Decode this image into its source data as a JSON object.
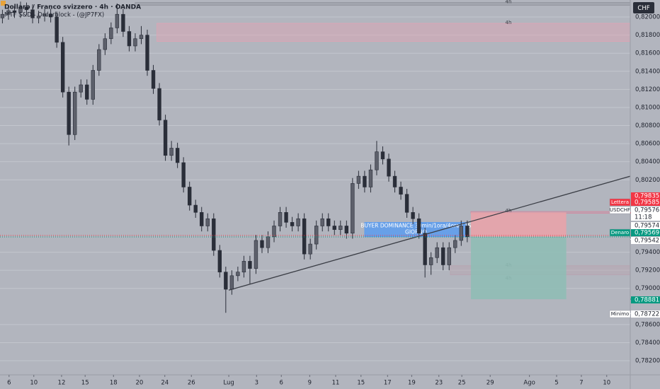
{
  "chart_data": {
    "type": "candlestick",
    "title": "Dollaro / Franco svizzero · 4h · OANDA",
    "subtitle": "MTF S&D - Orderblock - (@JP7FX)",
    "currency": "CHF",
    "color": "#2a2e39",
    "ohlc": [
      [
        0.8199,
        0.8208,
        0.8193,
        0.8203
      ],
      [
        0.8203,
        0.8213,
        0.8197,
        0.8207
      ],
      [
        0.8207,
        0.8212,
        0.8199,
        0.8205
      ],
      [
        0.8205,
        0.8217,
        0.8199,
        0.8211
      ],
      [
        0.8211,
        0.8216,
        0.8202,
        0.8208
      ],
      [
        0.8208,
        0.8214,
        0.8193,
        0.8199
      ],
      [
        0.8199,
        0.8207,
        0.8193,
        0.8201
      ],
      [
        0.8201,
        0.8209,
        0.8195,
        0.8203
      ],
      [
        0.8203,
        0.8209,
        0.8194,
        0.82
      ],
      [
        0.82,
        0.8206,
        0.8166,
        0.8172
      ],
      [
        0.8172,
        0.8178,
        0.8111,
        0.8117
      ],
      [
        0.8117,
        0.8123,
        0.8058,
        0.807
      ],
      [
        0.807,
        0.8123,
        0.8064,
        0.8117
      ],
      [
        0.8117,
        0.8131,
        0.8111,
        0.8125
      ],
      [
        0.8125,
        0.8131,
        0.8103,
        0.8109
      ],
      [
        0.8109,
        0.8147,
        0.8103,
        0.8141
      ],
      [
        0.8141,
        0.817,
        0.8135,
        0.8164
      ],
      [
        0.8164,
        0.8182,
        0.8158,
        0.8176
      ],
      [
        0.8176,
        0.8194,
        0.817,
        0.8188
      ],
      [
        0.8188,
        0.8215,
        0.8182,
        0.8203
      ],
      [
        0.8203,
        0.8209,
        0.8178,
        0.8184
      ],
      [
        0.8184,
        0.819,
        0.8162,
        0.8168
      ],
      [
        0.8168,
        0.8182,
        0.8162,
        0.8176
      ],
      [
        0.8176,
        0.819,
        0.817,
        0.818
      ],
      [
        0.818,
        0.8186,
        0.8135,
        0.8141
      ],
      [
        0.8141,
        0.8147,
        0.8115,
        0.8121
      ],
      [
        0.8121,
        0.8127,
        0.808,
        0.8086
      ],
      [
        0.8086,
        0.8092,
        0.8041,
        0.8047
      ],
      [
        0.8047,
        0.8063,
        0.8041,
        0.8055
      ],
      [
        0.8055,
        0.8061,
        0.8033,
        0.8039
      ],
      [
        0.8039,
        0.8045,
        0.8006,
        0.8012
      ],
      [
        0.8012,
        0.8018,
        0.7986,
        0.7992
      ],
      [
        0.7992,
        0.7998,
        0.7978,
        0.7984
      ],
      [
        0.7984,
        0.799,
        0.7963,
        0.7969
      ],
      [
        0.7969,
        0.7983,
        0.7963,
        0.7977
      ],
      [
        0.7977,
        0.7983,
        0.7936,
        0.7942
      ],
      [
        0.7942,
        0.7948,
        0.7912,
        0.7918
      ],
      [
        0.7918,
        0.7924,
        0.7873,
        0.7899
      ],
      [
        0.7899,
        0.792,
        0.7893,
        0.7914
      ],
      [
        0.7914,
        0.7924,
        0.7908,
        0.7918
      ],
      [
        0.7918,
        0.7936,
        0.7912,
        0.793
      ],
      [
        0.793,
        0.7936,
        0.7905,
        0.7922
      ],
      [
        0.7922,
        0.7959,
        0.7916,
        0.7953
      ],
      [
        0.7953,
        0.7959,
        0.7939,
        0.7945
      ],
      [
        0.7945,
        0.7963,
        0.7939,
        0.7957
      ],
      [
        0.7957,
        0.7975,
        0.7951,
        0.7969
      ],
      [
        0.7969,
        0.799,
        0.7963,
        0.7984
      ],
      [
        0.7984,
        0.799,
        0.7967,
        0.7973
      ],
      [
        0.7973,
        0.7979,
        0.7963,
        0.7969
      ],
      [
        0.7969,
        0.7983,
        0.7963,
        0.7977
      ],
      [
        0.7977,
        0.7983,
        0.7932,
        0.7938
      ],
      [
        0.7938,
        0.7955,
        0.7932,
        0.7949
      ],
      [
        0.7949,
        0.7975,
        0.7943,
        0.7969
      ],
      [
        0.7969,
        0.7983,
        0.7963,
        0.7977
      ],
      [
        0.7977,
        0.7983,
        0.7963,
        0.7969
      ],
      [
        0.7969,
        0.7975,
        0.7959,
        0.7965
      ],
      [
        0.7965,
        0.7975,
        0.7959,
        0.7969
      ],
      [
        0.7969,
        0.7975,
        0.7955,
        0.7961
      ],
      [
        0.7961,
        0.8022,
        0.7955,
        0.8016
      ],
      [
        0.8016,
        0.803,
        0.801,
        0.8024
      ],
      [
        0.8024,
        0.803,
        0.8006,
        0.8012
      ],
      [
        0.8012,
        0.8037,
        0.8006,
        0.8031
      ],
      [
        0.8031,
        0.8063,
        0.8025,
        0.8051
      ],
      [
        0.8051,
        0.8057,
        0.8037,
        0.8043
      ],
      [
        0.8043,
        0.8049,
        0.8018,
        0.8024
      ],
      [
        0.8024,
        0.803,
        0.8006,
        0.8012
      ],
      [
        0.8012,
        0.8018,
        0.7998,
        0.8004
      ],
      [
        0.8004,
        0.801,
        0.7978,
        0.7984
      ],
      [
        0.7984,
        0.799,
        0.7971,
        0.7977
      ],
      [
        0.7977,
        0.7983,
        0.7955,
        0.7961
      ],
      [
        0.7961,
        0.7967,
        0.7912,
        0.7926
      ],
      [
        0.7926,
        0.794,
        0.7915,
        0.7934
      ],
      [
        0.7934,
        0.7951,
        0.7928,
        0.7945
      ],
      [
        0.7945,
        0.7951,
        0.792,
        0.7926
      ],
      [
        0.7926,
        0.7951,
        0.792,
        0.7945
      ],
      [
        0.7945,
        0.7959,
        0.7939,
        0.7953
      ],
      [
        0.7953,
        0.7975,
        0.7947,
        0.7969
      ],
      [
        0.7969,
        0.7975,
        0.7951,
        0.7957
      ]
    ],
    "xlim": [
      -0.4,
      104
    ],
    "xticks": [
      {
        "value": 1.1,
        "label": "6"
      },
      {
        "value": 5.2,
        "label": "10"
      },
      {
        "value": 9.8,
        "label": "12"
      },
      {
        "value": 13.7,
        "label": "15"
      },
      {
        "value": 18.4,
        "label": "18"
      },
      {
        "value": 22.7,
        "label": "20"
      },
      {
        "value": 26.9,
        "label": "24"
      },
      {
        "value": 31.3,
        "label": "26"
      },
      {
        "value": 37.5,
        "label": "Lug"
      },
      {
        "value": 42.1,
        "label": "3"
      },
      {
        "value": 46.2,
        "label": "6"
      },
      {
        "value": 50.9,
        "label": "9"
      },
      {
        "value": 55.2,
        "label": "11"
      },
      {
        "value": 59.4,
        "label": "15"
      },
      {
        "value": 63.8,
        "label": "17"
      },
      {
        "value": 67.8,
        "label": "19"
      },
      {
        "value": 72.3,
        "label": "23"
      },
      {
        "value": 76.1,
        "label": "25"
      },
      {
        "value": 80.8,
        "label": "29"
      },
      {
        "value": 87.3,
        "label": "Ago"
      },
      {
        "value": 91.8,
        "label": "5"
      },
      {
        "value": 95.9,
        "label": "7"
      },
      {
        "value": 100.1,
        "label": "10"
      }
    ],
    "ylim": [
      0.78044,
      0.82188
    ],
    "yticks": [
      {
        "value": 0.82,
        "label": "0,82000"
      },
      {
        "value": 0.818,
        "label": "0,81800"
      },
      {
        "value": 0.816,
        "label": "0,81600"
      },
      {
        "value": 0.814,
        "label": "0,81400"
      },
      {
        "value": 0.812,
        "label": "0,81200"
      },
      {
        "value": 0.81,
        "label": "0,81000"
      },
      {
        "value": 0.808,
        "label": "0,80800"
      },
      {
        "value": 0.806,
        "label": "0,80600"
      },
      {
        "value": 0.804,
        "label": "0,80400"
      },
      {
        "value": 0.802,
        "label": "0,80200"
      },
      {
        "value": 0.794,
        "label": "0,79400"
      },
      {
        "value": 0.792,
        "label": "0,79200"
      },
      {
        "value": 0.79,
        "label": "0,79000"
      },
      {
        "value": 0.786,
        "label": "0,78600"
      },
      {
        "value": 0.784,
        "label": "0,78400"
      },
      {
        "value": 0.782,
        "label": "0,78200"
      }
    ],
    "grid": true,
    "trendline": {
      "x": [
        37.5,
        104
      ],
      "y": [
        0.7898,
        0.8024
      ],
      "color": "#3a3d45"
    },
    "zones": [
      {
        "label": [
          "4h"
        ],
        "x": [
          22,
          104
        ],
        "y": [
          0.8213,
          0.8216
        ],
        "color": "#8f929b"
      },
      {
        "label": [
          "4h"
        ],
        "x": [
          25.6,
          104
        ],
        "y": [
          0.8173,
          0.8193
        ],
        "color": "#e0a3b4"
      },
      {
        "label": [
          "4h"
        ],
        "x": [
          77.6,
          104
        ],
        "y": [
          0.7983,
          0.7985
        ],
        "color": "#d08aa0"
      },
      {
        "label": [
          "4h",
          "4h"
        ],
        "x": [
          74.2,
          104
        ],
        "y": [
          0.7915,
          0.7925
        ],
        "color": "#b8a3b0"
      },
      {
        "label": [
          "BUYER DOMINANCE 30min/1ora/4ore / 1S",
          "GIORNO"
        ],
        "x": [
          60,
          77
        ],
        "y": [
          0.7957,
          0.7973
        ],
        "color": "#5b9cf0"
      }
    ],
    "position": {
      "x": [
        77.6,
        93.4
      ],
      "entry": 0.7957,
      "stop": 0.7984,
      "target": 0.7888,
      "stop_color": "#e8a3aa",
      "target_color": "#8fbcb5"
    },
    "price_labels": [
      {
        "value": 0.79835,
        "label": "0,79835",
        "color": "#f23645"
      },
      {
        "value": 0.79585,
        "label": "0,79585",
        "tag": "Lettera",
        "color": "#f23645",
        "line": "dotted"
      },
      {
        "value": 0.79576,
        "label": "0,79576",
        "tag": "USDCHF",
        "sub": "11:18",
        "color": "#ffffff"
      },
      {
        "value": 0.79574,
        "label": "0,79574",
        "color": "#ffffff"
      },
      {
        "value": 0.79569,
        "label": "0,79569",
        "tag": "Denaro",
        "color": "#089981",
        "line": "dotted"
      },
      {
        "value": 0.79542,
        "label": "0,79542",
        "color": "#ffffff"
      },
      {
        "value": 0.78881,
        "label": "0,78881",
        "color": "#089981"
      },
      {
        "value": 0.78722,
        "label": "0,78722",
        "tag": "Minimo",
        "color": "#ffffff"
      }
    ]
  }
}
